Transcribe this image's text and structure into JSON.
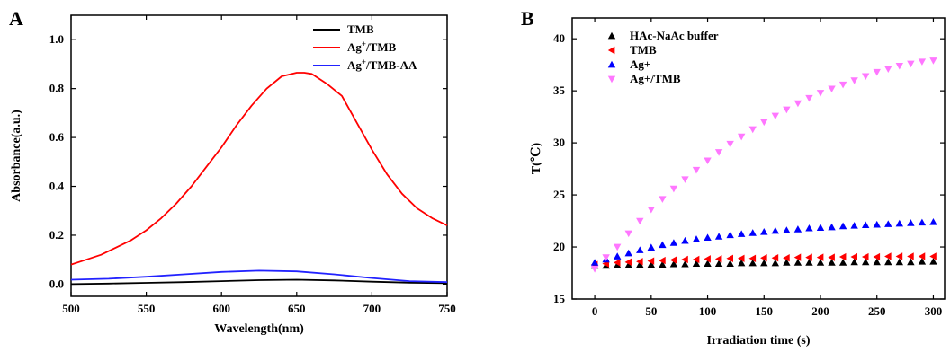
{
  "chart_data": [
    {
      "panel": "A",
      "type": "line",
      "xlabel": "Wavelength(nm)",
      "ylabel": "Absorbance(a.u.)",
      "xlim": [
        500,
        750
      ],
      "ylim": [
        -0.05,
        1.1
      ],
      "xticks": [
        500,
        550,
        600,
        650,
        700,
        750
      ],
      "yticks": [
        0.0,
        0.2,
        0.4,
        0.6,
        0.8,
        1.0
      ],
      "legend_position": "top-right",
      "series": [
        {
          "name": "TMB",
          "color": "#000000",
          "x": [
            500,
            525,
            550,
            575,
            600,
            625,
            650,
            675,
            700,
            725,
            750
          ],
          "y": [
            0.0,
            0.002,
            0.005,
            0.008,
            0.012,
            0.016,
            0.018,
            0.015,
            0.01,
            0.006,
            0.004
          ]
        },
        {
          "name": "Ag<sup>+</sup>/TMB",
          "color": "#ff0000",
          "x": [
            500,
            510,
            520,
            530,
            540,
            550,
            560,
            570,
            580,
            590,
            600,
            610,
            620,
            630,
            640,
            650,
            655,
            660,
            670,
            680,
            690,
            700,
            710,
            720,
            730,
            740,
            750
          ],
          "y": [
            0.08,
            0.1,
            0.12,
            0.15,
            0.18,
            0.22,
            0.27,
            0.33,
            0.4,
            0.48,
            0.56,
            0.65,
            0.73,
            0.8,
            0.85,
            0.865,
            0.865,
            0.86,
            0.82,
            0.77,
            0.66,
            0.55,
            0.45,
            0.37,
            0.31,
            0.27,
            0.24
          ]
        },
        {
          "name": "Ag<sup>+</sup>/TMB-AA",
          "color": "#2222ff",
          "x": [
            500,
            525,
            550,
            575,
            600,
            625,
            650,
            675,
            700,
            725,
            750
          ],
          "y": [
            0.018,
            0.022,
            0.03,
            0.04,
            0.05,
            0.055,
            0.052,
            0.04,
            0.025,
            0.012,
            0.008
          ]
        }
      ]
    },
    {
      "panel": "B",
      "type": "scatter",
      "xlabel": "Irradiation time (s)",
      "ylabel": "T(℃)",
      "xlim": [
        -20,
        310
      ],
      "ylim": [
        15,
        42
      ],
      "xticks": [
        0,
        50,
        100,
        150,
        200,
        250,
        300
      ],
      "yticks": [
        15,
        20,
        25,
        30,
        35,
        40
      ],
      "legend_position": "top-left",
      "x": [
        0,
        10,
        20,
        30,
        40,
        50,
        60,
        70,
        80,
        90,
        100,
        110,
        120,
        130,
        140,
        150,
        160,
        170,
        180,
        190,
        200,
        210,
        220,
        230,
        240,
        250,
        260,
        270,
        280,
        290,
        300
      ],
      "series": [
        {
          "name": "HAc-NaAc buffer",
          "marker": "triangle-up",
          "color": "#000000",
          "y": [
            18.2,
            18.2,
            18.25,
            18.25,
            18.3,
            18.3,
            18.3,
            18.35,
            18.35,
            18.4,
            18.4,
            18.4,
            18.4,
            18.45,
            18.45,
            18.45,
            18.45,
            18.5,
            18.5,
            18.5,
            18.5,
            18.5,
            18.5,
            18.55,
            18.55,
            18.55,
            18.55,
            18.55,
            18.55,
            18.6,
            18.6
          ]
        },
        {
          "name": "TMB",
          "marker": "triangle-left",
          "color": "#ff0000",
          "y": [
            18.3,
            18.4,
            18.5,
            18.55,
            18.6,
            18.65,
            18.7,
            18.75,
            18.8,
            18.8,
            18.85,
            18.85,
            18.9,
            18.9,
            18.9,
            18.95,
            18.95,
            18.95,
            19.0,
            19.0,
            19.0,
            19.0,
            19.05,
            19.05,
            19.05,
            19.05,
            19.1,
            19.1,
            19.1,
            19.1,
            19.1
          ]
        },
        {
          "name": "Ag+",
          "marker": "triangle-up",
          "color": "#0000ff",
          "y": [
            18.5,
            18.8,
            19.1,
            19.4,
            19.7,
            19.95,
            20.2,
            20.4,
            20.6,
            20.75,
            20.9,
            21.0,
            21.15,
            21.25,
            21.35,
            21.45,
            21.55,
            21.6,
            21.7,
            21.8,
            21.85,
            21.9,
            22.0,
            22.05,
            22.1,
            22.15,
            22.2,
            22.25,
            22.3,
            22.35,
            22.4
          ]
        },
        {
          "name": "Ag+/TMB",
          "marker": "triangle-down",
          "color": "#ff77ff",
          "y": [
            17.9,
            19.0,
            20.0,
            21.3,
            22.5,
            23.6,
            24.6,
            25.6,
            26.5,
            27.4,
            28.3,
            29.1,
            29.9,
            30.6,
            31.3,
            32.0,
            32.6,
            33.2,
            33.8,
            34.3,
            34.8,
            35.2,
            35.6,
            36.0,
            36.4,
            36.8,
            37.1,
            37.4,
            37.6,
            37.8,
            37.9
          ]
        }
      ]
    }
  ]
}
